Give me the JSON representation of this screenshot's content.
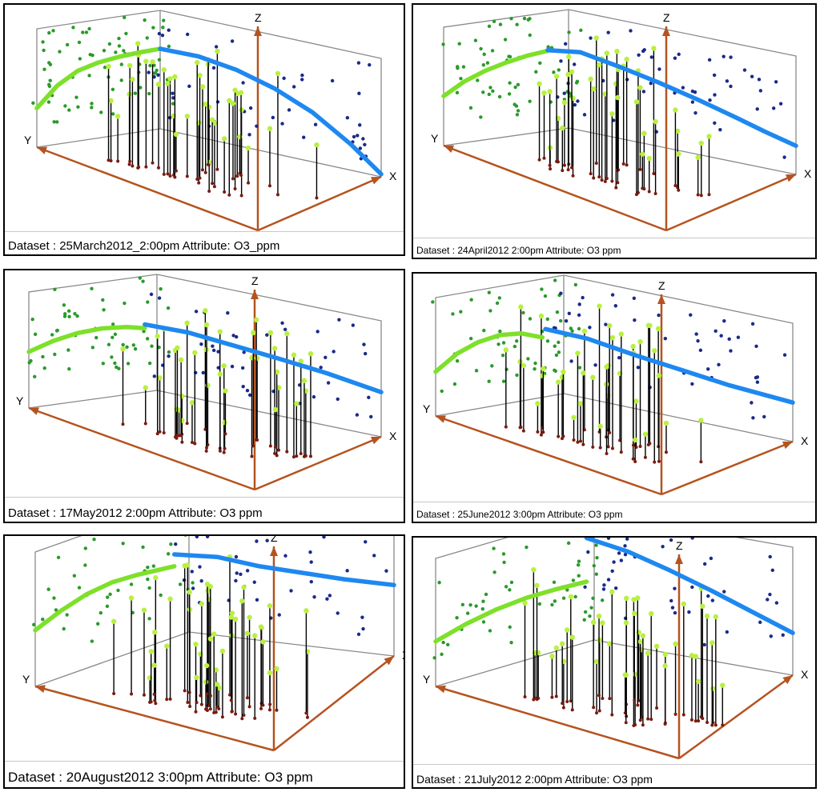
{
  "panels": [
    {
      "caption": "Dataset : 25March2012_2:00pm Attribute: O3_ppm",
      "chart_data": {
        "type": "scatter",
        "title": "Dataset : 25March2012_2:00pm Attribute: O3_ppm",
        "axes": {
          "x": "X",
          "y": "Y",
          "z": "Z"
        },
        "series": [
          {
            "name": "",
            "color": "#7ee02a",
            "curve": [
              [
                0.0,
                0.3
              ],
              [
                0.07,
                0.45
              ],
              [
                0.14,
                0.54
              ],
              [
                0.21,
                0.58
              ],
              [
                0.28,
                0.6
              ],
              [
                0.35,
                0.61
              ],
              [
                0.42,
                0.615
              ]
            ]
          },
          {
            "name": "",
            "color": "#1e88f0",
            "curve": [
              [
                0.42,
                0.615
              ],
              [
                0.52,
                0.62
              ],
              [
                0.62,
                0.58
              ],
              [
                0.72,
                0.5
              ],
              [
                0.82,
                0.38
              ],
              [
                0.92,
                0.2
              ],
              [
                1.0,
                0.02
              ]
            ]
          }
        ],
        "points": {
          "green": 70,
          "navy": 45,
          "stems": 42
        }
      }
    },
    {
      "caption": "Dataset : 24April2012  2:00pm Attribute: O3  ppm",
      "chart_data": {
        "type": "scatter",
        "title": "Dataset : 24April2012  2:00pm Attribute: O3  ppm",
        "axes": {
          "x": "X",
          "y": "Y",
          "z": "Z"
        },
        "series": [
          {
            "name": "",
            "color": "#7ee02a",
            "curve": [
              [
                0.0,
                0.38
              ],
              [
                0.07,
                0.47
              ],
              [
                0.14,
                0.53
              ],
              [
                0.21,
                0.57
              ],
              [
                0.28,
                0.6
              ],
              [
                0.35,
                0.615
              ]
            ]
          },
          {
            "name": "",
            "color": "#1e88f0",
            "curve": [
              [
                0.35,
                0.62
              ],
              [
                0.45,
                0.6
              ],
              [
                0.55,
                0.55
              ],
              [
                0.65,
                0.49
              ],
              [
                0.75,
                0.42
              ],
              [
                0.85,
                0.34
              ],
              [
                0.92,
                0.28
              ],
              [
                1.0,
                0.22
              ]
            ]
          }
        ],
        "points": {
          "green": 60,
          "navy": 50,
          "stems": 40
        }
      }
    },
    {
      "caption": "Dataset : 17May2012  2:00pm Attribute: O3  ppm",
      "chart_data": {
        "type": "scatter",
        "title": "Dataset : 17May2012  2:00pm Attribute: O3  ppm",
        "axes": {
          "x": "X",
          "y": "Y",
          "z": "Z"
        },
        "series": [
          {
            "name": "",
            "color": "#7ee02a",
            "curve": [
              [
                0.0,
                0.44
              ],
              [
                0.08,
                0.5
              ],
              [
                0.16,
                0.535
              ],
              [
                0.24,
                0.545
              ],
              [
                0.32,
                0.53
              ],
              [
                0.38,
                0.5
              ]
            ]
          },
          {
            "name": "",
            "color": "#1e88f0",
            "curve": [
              [
                0.38,
                0.53
              ],
              [
                0.5,
                0.505
              ],
              [
                0.62,
                0.475
              ],
              [
                0.74,
                0.445
              ],
              [
                0.86,
                0.41
              ],
              [
                1.0,
                0.35
              ]
            ]
          }
        ],
        "points": {
          "green": 55,
          "navy": 45,
          "stems": 40
        }
      }
    },
    {
      "caption": "Dataset : 25June2012  3:00pm Attribute: O3  ppm",
      "chart_data": {
        "type": "scatter",
        "title": "Dataset : 25June2012  3:00pm Attribute: O3  ppm",
        "axes": {
          "x": "X",
          "y": "Y",
          "z": "Z"
        },
        "series": [
          {
            "name": "",
            "color": "#7ee02a",
            "curve": [
              [
                0.0,
                0.34
              ],
              [
                0.07,
                0.45
              ],
              [
                0.14,
                0.51
              ],
              [
                0.21,
                0.535
              ],
              [
                0.28,
                0.52
              ],
              [
                0.35,
                0.46
              ]
            ]
          },
          {
            "name": "",
            "color": "#1e88f0",
            "curve": [
              [
                0.36,
                0.52
              ],
              [
                0.48,
                0.46
              ],
              [
                0.6,
                0.41
              ],
              [
                0.72,
                0.37
              ],
              [
                0.84,
                0.33
              ],
              [
                1.0,
                0.3
              ]
            ]
          }
        ],
        "points": {
          "green": 55,
          "navy": 45,
          "stems": 40
        }
      }
    },
    {
      "caption": "Dataset : 20August2012  3:00pm Attribute: O3  ppm",
      "chart_data": {
        "type": "scatter",
        "title": "Dataset : 20August2012  3:00pm Attribute: O3  ppm",
        "axes": {
          "x": "X",
          "y": "Y",
          "z": "Z"
        },
        "series": [
          {
            "name": "",
            "color": "#7ee02a",
            "curve": [
              [
                0.0,
                0.38
              ],
              [
                0.07,
                0.45
              ],
              [
                0.14,
                0.5
              ],
              [
                0.21,
                0.52
              ],
              [
                0.28,
                0.51
              ],
              [
                0.38,
                0.48
              ]
            ]
          },
          {
            "name": "",
            "color": "#1e88f0",
            "curve": [
              [
                0.38,
                0.56
              ],
              [
                0.5,
                0.53
              ],
              [
                0.62,
                0.5
              ],
              [
                0.74,
                0.49
              ],
              [
                0.86,
                0.48
              ],
              [
                1.0,
                0.48
              ]
            ]
          }
        ],
        "points": {
          "green": 45,
          "navy": 45,
          "stems": 48
        }
      }
    },
    {
      "caption": "Dataset : 21July2012  2:00pm Attribute: O3  ppm",
      "chart_data": {
        "type": "scatter",
        "title": "Dataset : 21July2012  2:00pm Attribute: O3  ppm",
        "axes": {
          "x": "X",
          "y": "Y",
          "z": "Z"
        },
        "series": [
          {
            "name": "",
            "color": "#7ee02a",
            "curve": [
              [
                0.0,
                0.32
              ],
              [
                0.08,
                0.38
              ],
              [
                0.16,
                0.42
              ],
              [
                0.24,
                0.44
              ],
              [
                0.32,
                0.44
              ],
              [
                0.4,
                0.43
              ]
            ]
          },
          {
            "name": "",
            "color": "#1e88f0",
            "curve": [
              [
                0.4,
                0.74
              ],
              [
                0.52,
                0.67
              ],
              [
                0.64,
                0.59
              ],
              [
                0.76,
                0.5
              ],
              [
                0.88,
                0.4
              ],
              [
                1.0,
                0.3
              ]
            ]
          }
        ],
        "points": {
          "green": 55,
          "navy": 45,
          "stems": 48
        }
      }
    }
  ],
  "colors": {
    "box": "#8a8a8a",
    "floor_axes": "#b5531f",
    "z_axis": "#b5531f",
    "green_points": "#2a9a2a",
    "navy_points": "#1a2a8a",
    "stem_top": "#b8f040",
    "stem_base": "#7a1a10"
  }
}
